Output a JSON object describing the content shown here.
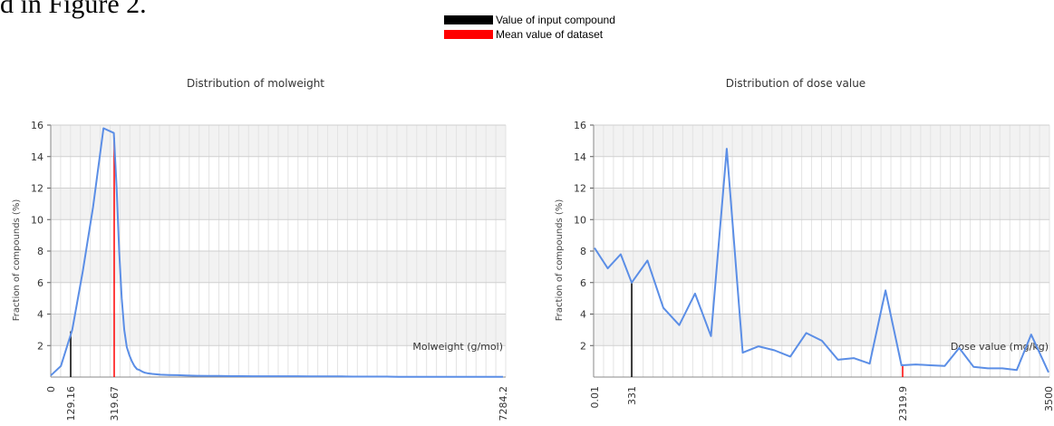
{
  "page_fragment": "d in Figure 2.",
  "legend": [
    {
      "label": "Value of input compound",
      "color": "#000000"
    },
    {
      "label": "Mean value of dataset",
      "color": "#ff0000"
    }
  ],
  "chart_data": [
    {
      "type": "line",
      "title": "Distribution of molweight",
      "xlabel": "Molweight (g/mol)",
      "ylabel": "Fraction of compounds (%)",
      "ylim": [
        0,
        16
      ],
      "y_ticks": [
        2,
        4,
        6,
        8,
        10,
        12,
        14,
        16
      ],
      "x_tick_labels": [
        "0",
        "129.16",
        "319.67",
        "7284.2"
      ],
      "xlim": [
        0,
        7284.2
      ],
      "grid": true,
      "line_color": "#5b8ee6",
      "markers": [
        {
          "name": "Value of input compound",
          "x": 129.16,
          "height": 2.9,
          "color": "#000000"
        },
        {
          "name": "Mean value of dataset",
          "x": 319.67,
          "height": 15.2,
          "color": "#ff0000"
        }
      ],
      "series": [
        {
          "x": [
            0,
            66,
            136,
            182,
            227,
            273,
            318,
            364,
            409,
            455,
            500,
            546,
            591,
            637,
            682,
            728,
            773,
            819,
            864,
            910,
            1000,
            1150,
            1300,
            1450,
            1600,
            1800,
            2000,
            2200,
            2400,
            2600,
            2800,
            3000,
            3200,
            3400,
            3600,
            3800,
            4000,
            4200,
            4400,
            4600,
            4800,
            5000,
            5200,
            5400,
            5600,
            5800,
            6000,
            6200,
            6400,
            6600,
            6800,
            7000,
            7284.2
          ],
          "y": [
            0.1,
            0.7,
            3.0,
            6.7,
            10.8,
            15.8,
            15.5,
            12.0,
            8.0,
            5.0,
            3.0,
            1.9,
            1.4,
            1.0,
            0.7,
            0.5,
            0.45,
            0.35,
            0.28,
            0.25,
            0.2,
            0.15,
            0.13,
            0.12,
            0.1,
            0.08,
            0.07,
            0.07,
            0.06,
            0.06,
            0.05,
            0.05,
            0.05,
            0.05,
            0.05,
            0.04,
            0.04,
            0.04,
            0.04,
            0.03,
            0.03,
            0.03,
            0.03,
            0.02,
            0.02,
            0.02,
            0.02,
            0.02,
            0.02,
            0.02,
            0.02,
            0.02,
            0.02
          ]
        }
      ]
    },
    {
      "type": "line",
      "title": "Distribution of dose value",
      "xlabel": "Dose value (mg/kg)",
      "ylabel": "Fraction of compounds (%)",
      "ylim": [
        0,
        16
      ],
      "y_ticks": [
        2,
        4,
        6,
        8,
        10,
        12,
        14,
        16
      ],
      "x_tick_labels": [
        "0.01",
        "331",
        "2319.9",
        "3500"
      ],
      "xlim": [
        0.01,
        3500
      ],
      "grid": true,
      "line_color": "#5b8ee6",
      "markers": [
        {
          "name": "Value of input compound",
          "x": 331,
          "height": 6.0,
          "color": "#000000"
        },
        {
          "name": "Mean value of dataset",
          "x": 2319.9,
          "height": 0.7,
          "color": "#ff0000"
        }
      ],
      "series": [
        {
          "x": [
            0.01,
            118,
            233,
            331,
            447,
            563,
            680,
            796,
            913,
            1029,
            1146,
            1262,
            1379,
            1495,
            1612,
            1728,
            1845,
            1961,
            2078,
            2194,
            2311,
            2427,
            2544,
            2660,
            2777,
            2893,
            3010,
            3126,
            3243,
            3359,
            3500
          ],
          "y": [
            8.2,
            6.9,
            7.8,
            6.0,
            7.4,
            4.4,
            3.3,
            5.3,
            2.6,
            14.5,
            1.55,
            1.95,
            1.7,
            1.3,
            2.8,
            2.3,
            1.1,
            1.2,
            0.85,
            5.5,
            0.75,
            0.8,
            0.75,
            0.7,
            1.85,
            0.65,
            0.55,
            0.55,
            0.45,
            2.7,
            0.3
          ]
        }
      ]
    }
  ]
}
